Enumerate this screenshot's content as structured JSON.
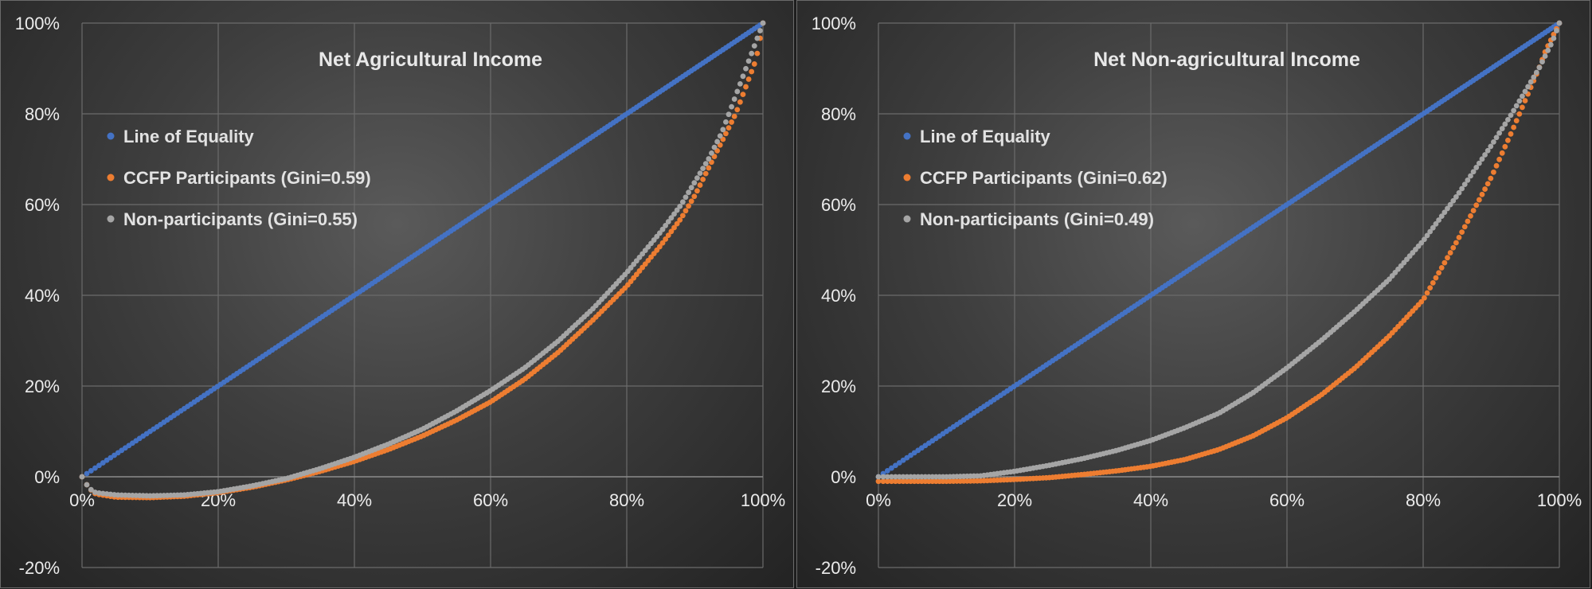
{
  "chart_data": [
    {
      "type": "scatter",
      "title": "Net Agricultural Income",
      "xlim": [
        0,
        100
      ],
      "ylim": [
        -20,
        100
      ],
      "x_ticks": [
        "0%",
        "20%",
        "40%",
        "60%",
        "80%",
        "100%"
      ],
      "y_ticks": [
        "-20%",
        "0%",
        "20%",
        "40%",
        "60%",
        "80%",
        "100%"
      ],
      "grid": true,
      "legend_position": "top-left",
      "series": [
        {
          "name": "Line of Equality",
          "color": "#4472c4",
          "x": [
            0,
            10,
            20,
            30,
            40,
            50,
            60,
            70,
            80,
            90,
            100
          ],
          "y": [
            0,
            10,
            20,
            30,
            40,
            50,
            60,
            70,
            80,
            90,
            100
          ]
        },
        {
          "name": "CCFP Participants (Gini=0.59)",
          "color": "#ed7d31",
          "x": [
            0,
            1,
            2,
            5,
            10,
            15,
            20,
            25,
            30,
            35,
            40,
            45,
            50,
            55,
            60,
            65,
            70,
            75,
            80,
            85,
            88,
            90,
            92,
            94,
            95,
            96,
            97,
            98,
            99,
            100
          ],
          "y": [
            0,
            -2.5,
            -3.8,
            -4.5,
            -4.6,
            -4.3,
            -3.5,
            -2.3,
            -0.7,
            1.2,
            3.4,
            6,
            9,
            12.5,
            16.5,
            21.5,
            27.5,
            34.5,
            42,
            51,
            57,
            62,
            68,
            74,
            77,
            80,
            84,
            88,
            92,
            100
          ]
        },
        {
          "name": "Non-participants (Gini=0.55)",
          "color": "#a5a5a5",
          "x": [
            0,
            1,
            2,
            5,
            10,
            15,
            20,
            25,
            30,
            35,
            40,
            45,
            50,
            55,
            60,
            65,
            70,
            75,
            80,
            85,
            88,
            90,
            92,
            94,
            95,
            96,
            97,
            98,
            99,
            100
          ],
          "y": [
            0,
            -2.5,
            -3.5,
            -4,
            -4.2,
            -4,
            -3.3,
            -2,
            -0.4,
            1.8,
            4.3,
            7.2,
            10.5,
            14.5,
            19,
            24,
            30,
            37,
            45,
            54,
            60,
            65,
            70,
            76,
            80,
            84,
            88,
            92,
            96,
            100
          ]
        }
      ]
    },
    {
      "type": "scatter",
      "title": "Net Non-agricultural Income",
      "xlim": [
        0,
        100
      ],
      "ylim": [
        -20,
        100
      ],
      "x_ticks": [
        "0%",
        "20%",
        "40%",
        "60%",
        "80%",
        "100%"
      ],
      "y_ticks": [
        "-20%",
        "0%",
        "20%",
        "40%",
        "60%",
        "80%",
        "100%"
      ],
      "grid": true,
      "legend_position": "top-left",
      "series": [
        {
          "name": "Line of Equality",
          "color": "#4472c4",
          "x": [
            0,
            10,
            20,
            30,
            40,
            50,
            60,
            70,
            80,
            90,
            100
          ],
          "y": [
            0,
            10,
            20,
            30,
            40,
            50,
            60,
            70,
            80,
            90,
            100
          ]
        },
        {
          "name": "CCFP Participants (Gini=0.62)",
          "color": "#ed7d31",
          "x": [
            0,
            5,
            10,
            15,
            20,
            25,
            30,
            35,
            40,
            45,
            50,
            55,
            60,
            65,
            70,
            75,
            80,
            85,
            90,
            93,
            95,
            97,
            98,
            99,
            100
          ],
          "y": [
            -1,
            -1,
            -1,
            -0.9,
            -0.6,
            -0.2,
            0.5,
            1.3,
            2.3,
            3.8,
            6,
            9,
            13,
            18,
            24,
            31,
            39,
            52,
            66,
            76,
            83,
            90,
            94,
            97,
            100
          ]
        },
        {
          "name": "Non-participants (Gini=0.49)",
          "color": "#a5a5a5",
          "x": [
            0,
            5,
            10,
            15,
            20,
            25,
            30,
            35,
            40,
            45,
            50,
            55,
            60,
            65,
            70,
            75,
            80,
            85,
            90,
            93,
            95,
            97,
            98,
            99,
            100
          ],
          "y": [
            0,
            0,
            0,
            0.2,
            1.2,
            2.5,
            4,
            5.8,
            8,
            10.8,
            14,
            18.5,
            24,
            30,
            36.5,
            43.5,
            52,
            62,
            73,
            80,
            85,
            90,
            93,
            96,
            100
          ]
        }
      ]
    }
  ]
}
